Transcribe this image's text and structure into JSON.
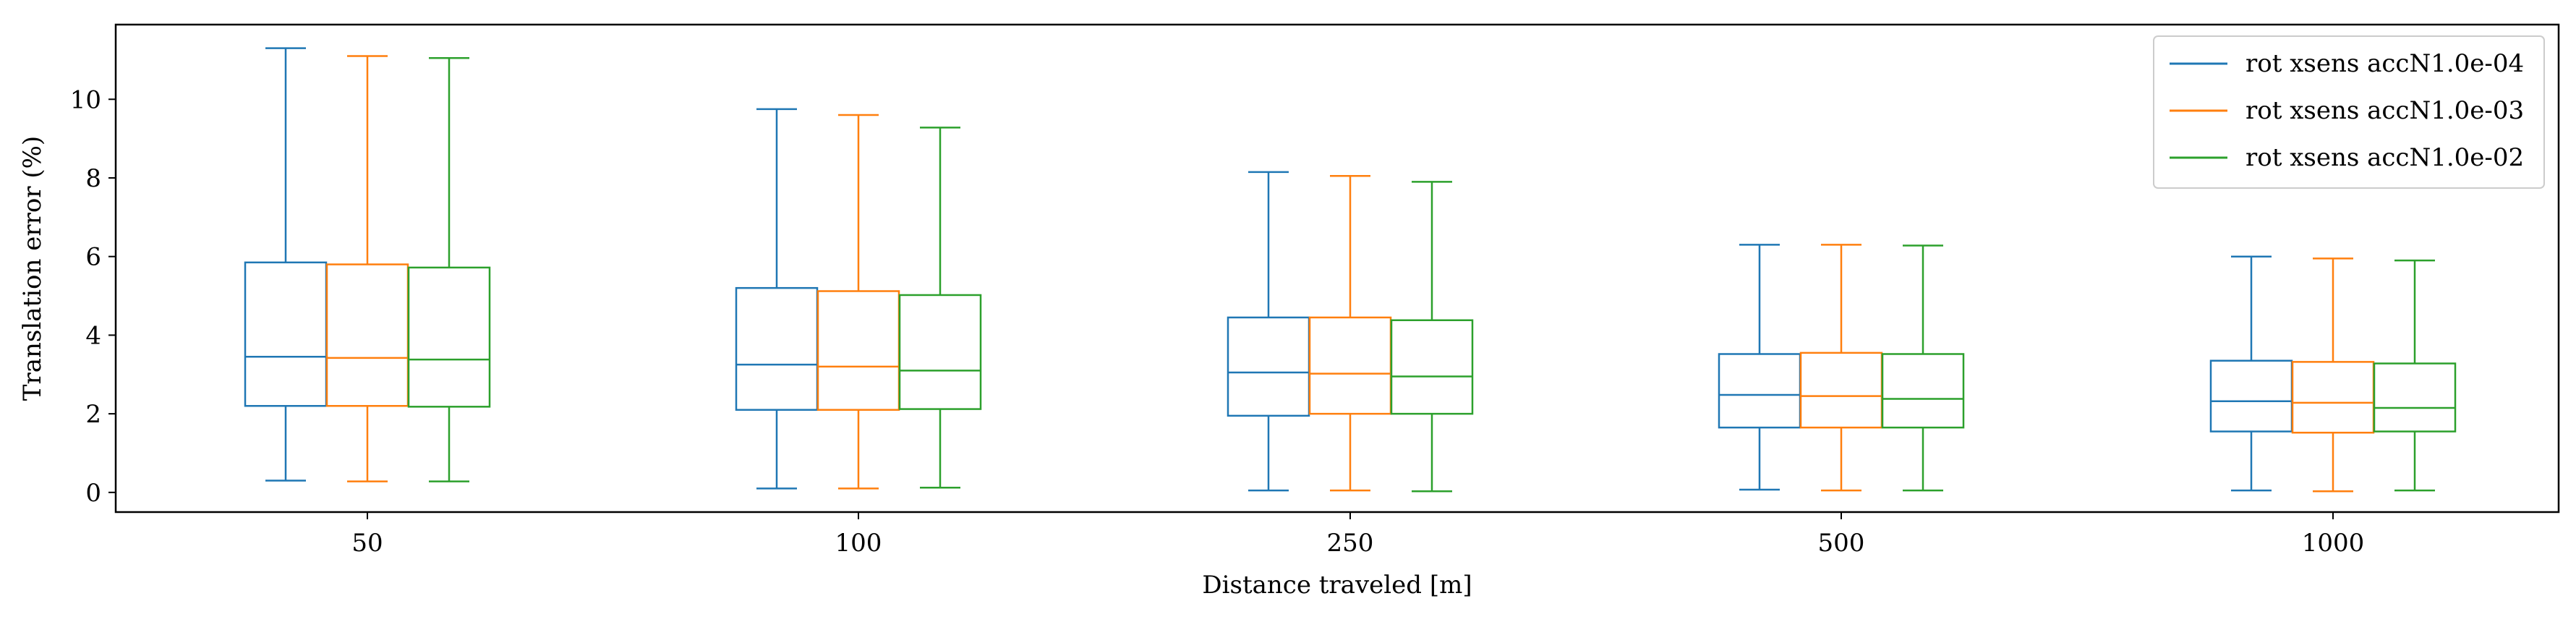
{
  "chart_data": {
    "type": "boxplot",
    "title": "",
    "xlabel": "Distance traveled [m]",
    "ylabel": "Translation error (%)",
    "categories": [
      "50",
      "100",
      "250",
      "500",
      "1000"
    ],
    "ylim": [
      -0.5,
      11.9
    ],
    "yticks": [
      "0",
      "2",
      "4",
      "6",
      "8",
      "10"
    ],
    "grid": false,
    "legend_position": "top-right",
    "series": [
      {
        "name": "rot xsens accN1.0e-04",
        "color": "#1f77b4",
        "boxes": [
          {
            "whislo": 0.3,
            "q1": 2.2,
            "med": 3.45,
            "q3": 5.85,
            "whishi": 11.3
          },
          {
            "whislo": 0.1,
            "q1": 2.1,
            "med": 3.25,
            "q3": 5.2,
            "whishi": 9.75
          },
          {
            "whislo": 0.05,
            "q1": 1.95,
            "med": 3.05,
            "q3": 4.45,
            "whishi": 8.15
          },
          {
            "whislo": 0.07,
            "q1": 1.65,
            "med": 2.48,
            "q3": 3.52,
            "whishi": 6.3
          },
          {
            "whislo": 0.05,
            "q1": 1.55,
            "med": 2.32,
            "q3": 3.35,
            "whishi": 6.0
          }
        ]
      },
      {
        "name": "rot xsens accN1.0e-03",
        "color": "#ff7f0e",
        "boxes": [
          {
            "whislo": 0.28,
            "q1": 2.2,
            "med": 3.42,
            "q3": 5.8,
            "whishi": 11.1
          },
          {
            "whislo": 0.1,
            "q1": 2.1,
            "med": 3.2,
            "q3": 5.12,
            "whishi": 9.6
          },
          {
            "whislo": 0.05,
            "q1": 2.0,
            "med": 3.02,
            "q3": 4.45,
            "whishi": 8.05
          },
          {
            "whislo": 0.05,
            "q1": 1.65,
            "med": 2.45,
            "q3": 3.55,
            "whishi": 6.3
          },
          {
            "whislo": 0.03,
            "q1": 1.52,
            "med": 2.28,
            "q3": 3.32,
            "whishi": 5.95
          }
        ]
      },
      {
        "name": "rot xsens accN1.0e-02",
        "color": "#2ca02c",
        "boxes": [
          {
            "whislo": 0.28,
            "q1": 2.18,
            "med": 3.38,
            "q3": 5.72,
            "whishi": 11.05
          },
          {
            "whislo": 0.12,
            "q1": 2.12,
            "med": 3.1,
            "q3": 5.02,
            "whishi": 9.28
          },
          {
            "whislo": 0.03,
            "q1": 2.0,
            "med": 2.95,
            "q3": 4.38,
            "whishi": 7.9
          },
          {
            "whislo": 0.05,
            "q1": 1.65,
            "med": 2.38,
            "q3": 3.52,
            "whishi": 6.28
          },
          {
            "whislo": 0.05,
            "q1": 1.55,
            "med": 2.15,
            "q3": 3.28,
            "whishi": 5.9
          }
        ]
      }
    ]
  }
}
